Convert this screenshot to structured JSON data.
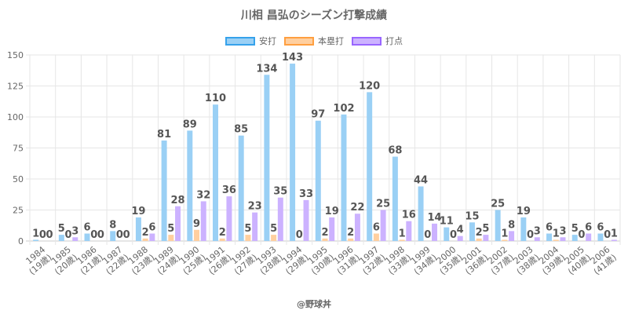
{
  "chart_data": {
    "type": "bar",
    "title": "川相 昌弘のシーズン打撃成績",
    "xlabel": "",
    "ylabel": "",
    "ylim": [
      0,
      150
    ],
    "yticks": [
      0,
      25,
      50,
      75,
      100,
      125,
      150
    ],
    "grid": true,
    "legend_position": "top",
    "categories": [
      [
        "1984",
        "(19歳)"
      ],
      [
        "1985",
        "(20歳)"
      ],
      [
        "1986",
        "(21歳)"
      ],
      [
        "1987",
        "(22歳)"
      ],
      [
        "1988",
        "(23歳)"
      ],
      [
        "1989",
        "(24歳)"
      ],
      [
        "1990",
        "(25歳)"
      ],
      [
        "1991",
        "(26歳)"
      ],
      [
        "1992",
        "(27歳)"
      ],
      [
        "1993",
        "(28歳)"
      ],
      [
        "1994",
        "(29歳)"
      ],
      [
        "1995",
        "(30歳)"
      ],
      [
        "1996",
        "(31歳)"
      ],
      [
        "1997",
        "(32歳)"
      ],
      [
        "1998",
        "(33歳)"
      ],
      [
        "1999",
        "(34歳)"
      ],
      [
        "2000",
        "(35歳)"
      ],
      [
        "2001",
        "(36歳)"
      ],
      [
        "2002",
        "(37歳)"
      ],
      [
        "2003",
        "(38歳)"
      ],
      [
        "2004",
        "(39歳)"
      ],
      [
        "2005",
        "(40歳)"
      ],
      [
        "2006",
        "(41歳)"
      ]
    ],
    "series": [
      {
        "name": "安打",
        "color": "#9ad0f5",
        "border": "#36a2eb",
        "values": [
          1,
          5,
          6,
          8,
          19,
          81,
          89,
          110,
          85,
          134,
          143,
          97,
          102,
          120,
          68,
          44,
          11,
          15,
          25,
          19,
          6,
          5,
          6
        ]
      },
      {
        "name": "本塁打",
        "color": "#ffcf9f",
        "border": "#ff9f40",
        "values": [
          0,
          0,
          0,
          0,
          2,
          5,
          9,
          2,
          5,
          5,
          0,
          2,
          2,
          6,
          1,
          0,
          0,
          2,
          1,
          0,
          1,
          0,
          0
        ]
      },
      {
        "name": "打点",
        "color": "#ccb2ff",
        "border": "#9966ff",
        "values": [
          0,
          3,
          0,
          0,
          6,
          28,
          32,
          36,
          23,
          35,
          33,
          19,
          22,
          25,
          16,
          14,
          4,
          5,
          8,
          3,
          3,
          6,
          1
        ]
      }
    ]
  },
  "footer": "@野球丼"
}
